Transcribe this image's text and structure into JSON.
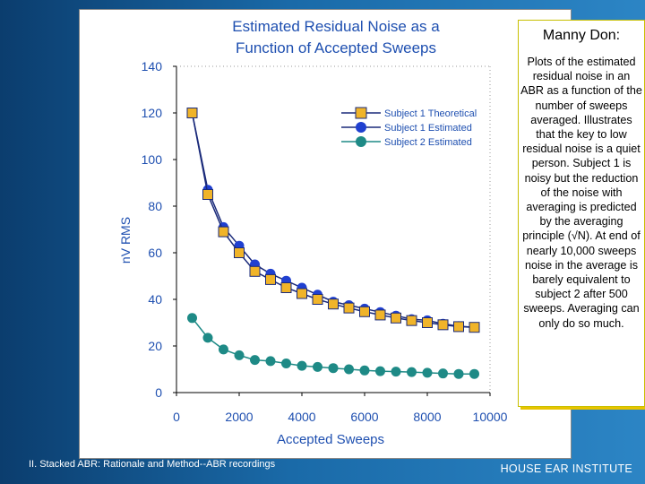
{
  "chart_data": {
    "type": "line",
    "title_lines": [
      "Estimated Residual Noise as a",
      "Function of Accepted Sweeps"
    ],
    "xlabel": "Accepted Sweeps",
    "ylabel": "nV RMS",
    "xlim": [
      0,
      10000
    ],
    "ylim": [
      0,
      140
    ],
    "x_ticks": [
      0,
      2000,
      4000,
      6000,
      8000,
      10000
    ],
    "y_ticks": [
      0,
      20,
      40,
      60,
      80,
      100,
      120,
      140
    ],
    "x_tick_labels": [
      "0",
      "2000",
      "4000",
      "6000",
      "8000",
      "10000"
    ],
    "y_tick_labels": [
      "0",
      "20",
      "40",
      "60",
      "80",
      "100",
      "120",
      "140"
    ],
    "grid": false,
    "legend_position": "top-right",
    "series": [
      {
        "name": "Subject 1 Theoretical",
        "marker": "square",
        "color": "#f0b429",
        "x": [
          500,
          1000,
          1500,
          2000,
          2500,
          3000,
          3500,
          4000,
          4500,
          5000,
          5500,
          6000,
          6500,
          7000,
          7500,
          8000,
          8500,
          9000,
          9500
        ],
        "y": [
          120,
          85,
          69,
          60,
          52,
          48.5,
          45,
          42.5,
          40,
          38,
          36.3,
          34.7,
          33.3,
          32,
          30.9,
          30,
          29.1,
          28.3,
          28
        ]
      },
      {
        "name": "Subject 1 Estimated",
        "marker": "circle",
        "color": "#2040d0",
        "x": [
          500,
          1000,
          1500,
          2000,
          2500,
          3000,
          3500,
          4000,
          4500,
          5000,
          5500,
          6000,
          6500,
          7000,
          7500,
          8000,
          8500,
          9000,
          9500
        ],
        "y": [
          120,
          87,
          71,
          63,
          55,
          51,
          48,
          45,
          42,
          39,
          37.5,
          36,
          34.5,
          33,
          31.5,
          31,
          29.5,
          28.5,
          28
        ]
      },
      {
        "name": "Subject 2 Estimated",
        "marker": "circle",
        "color": "#1e8a86",
        "x": [
          500,
          1000,
          1500,
          2000,
          2500,
          3000,
          3500,
          4000,
          4500,
          5000,
          5500,
          6000,
          6500,
          7000,
          7500,
          8000,
          8500,
          9000,
          9500
        ],
        "y": [
          32,
          23.5,
          18.5,
          16,
          14,
          13.5,
          12.5,
          11.5,
          11,
          10.5,
          10,
          9.5,
          9.2,
          9,
          8.8,
          8.5,
          8.2,
          8,
          8
        ]
      }
    ]
  },
  "note": {
    "title": "Manny Don:",
    "text": "Plots of the estimated residual noise in an ABR as a function of the number of sweeps averaged.  Illustrates that the key to low residual noise is a quiet person.  Subject 1 is noisy but the reduction of the noise with averaging is predicted by the averaging principle (√N).  At end of nearly 10,000 sweeps noise in the average is barely equivalent to subject 2 after 500 sweeps. Averaging can only do so much."
  },
  "footer": {
    "left": "II. Stacked ABR: Rationale and Method--ABR recordings",
    "right": "HOUSE  EAR  INSTITUTE"
  }
}
